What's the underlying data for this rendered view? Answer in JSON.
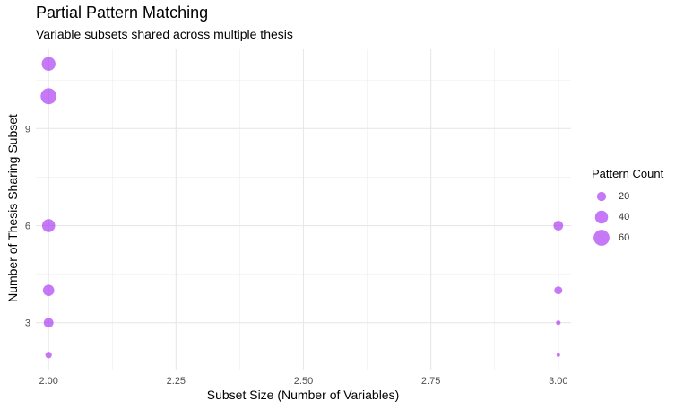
{
  "chart_data": {
    "type": "scatter",
    "title": "Partial Pattern Matching",
    "subtitle": "Variable subsets shared across multiple thesis",
    "xlabel": "Subset Size (Number of Variables)",
    "ylabel": "Number of Thesis Sharing Subset",
    "x_ticks": [
      "2.00",
      "2.25",
      "2.50",
      "2.75",
      "3.00"
    ],
    "y_ticks": [
      "3",
      "6",
      "9"
    ],
    "xlim": [
      1.975,
      3.025
    ],
    "ylim": [
      1.55,
      11.45
    ],
    "grid": true,
    "legend_position": "right",
    "point_color": "#a020f0",
    "points": [
      {
        "x": 2,
        "y": 11,
        "pattern_count": 45
      },
      {
        "x": 2,
        "y": 10,
        "pattern_count": 60
      },
      {
        "x": 2,
        "y": 6,
        "pattern_count": 40
      },
      {
        "x": 2,
        "y": 4,
        "pattern_count": 30
      },
      {
        "x": 2,
        "y": 3,
        "pattern_count": 22
      },
      {
        "x": 2,
        "y": 2,
        "pattern_count": 10
      },
      {
        "x": 3,
        "y": 6,
        "pattern_count": 22
      },
      {
        "x": 3,
        "y": 4,
        "pattern_count": 15
      },
      {
        "x": 3,
        "y": 3,
        "pattern_count": 5
      },
      {
        "x": 3,
        "y": 2,
        "pattern_count": 3
      }
    ],
    "legend": {
      "title": "Pattern Count",
      "entries": [
        {
          "label": "20",
          "value": 20
        },
        {
          "label": "40",
          "value": 40
        },
        {
          "label": "60",
          "value": 60
        }
      ]
    }
  }
}
